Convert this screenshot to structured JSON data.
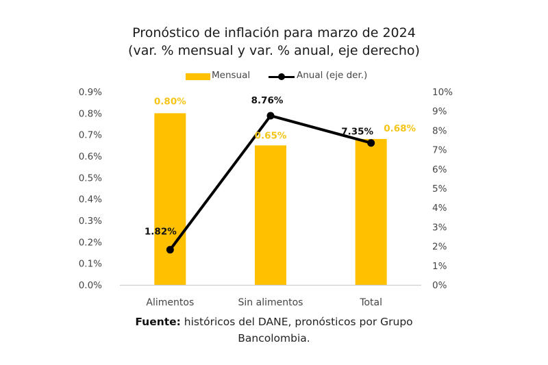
{
  "chart_data": {
    "type": "bar",
    "title": "Pronóstico de inflación para marzo de 2024",
    "subtitle": "(var. % mensual y var. % anual, eje derecho)",
    "categories": [
      "Alimentos",
      "Sin alimentos",
      "Total"
    ],
    "series": [
      {
        "name": "Mensual",
        "type": "bar",
        "axis": "left",
        "values": [
          0.8,
          0.65,
          0.68
        ],
        "labels": [
          "0.80%",
          "0.65%",
          "0.68%"
        ],
        "color": "#FFC000"
      },
      {
        "name": "Anual (eje der.)",
        "type": "line",
        "axis": "right",
        "values": [
          1.82,
          8.76,
          7.35
        ],
        "labels": [
          "1.82%",
          "8.76%",
          "7.35%"
        ],
        "color": "#000000"
      }
    ],
    "y_left": {
      "ylim": [
        0,
        0.9
      ],
      "ticks": [
        0,
        0.1,
        0.2,
        0.3,
        0.4,
        0.5,
        0.6,
        0.7,
        0.8,
        0.9
      ],
      "tick_labels": [
        "0.0%",
        "0.1%",
        "0.2%",
        "0.3%",
        "0.4%",
        "0.5%",
        "0.6%",
        "0.7%",
        "0.8%",
        "0.9%"
      ]
    },
    "y_right": {
      "ylim": [
        0,
        10
      ],
      "ticks": [
        0,
        1,
        2,
        3,
        4,
        5,
        6,
        7,
        8,
        9,
        10
      ],
      "tick_labels": [
        "0%",
        "1%",
        "2%",
        "3%",
        "4%",
        "5%",
        "6%",
        "7%",
        "8%",
        "9%",
        "10%"
      ]
    },
    "xlabel": "",
    "ylabel": "",
    "grid": false,
    "legend": {
      "position": "top-center",
      "entries": [
        "Mensual",
        "Anual (eje der.)"
      ]
    },
    "bar_label_color": "#F5C518",
    "line_label_color": "#111111"
  },
  "source": {
    "prefix": "Fuente:",
    "text": " históricos del DANE, pronósticos por Grupo",
    "line2": "Bancolombia."
  }
}
